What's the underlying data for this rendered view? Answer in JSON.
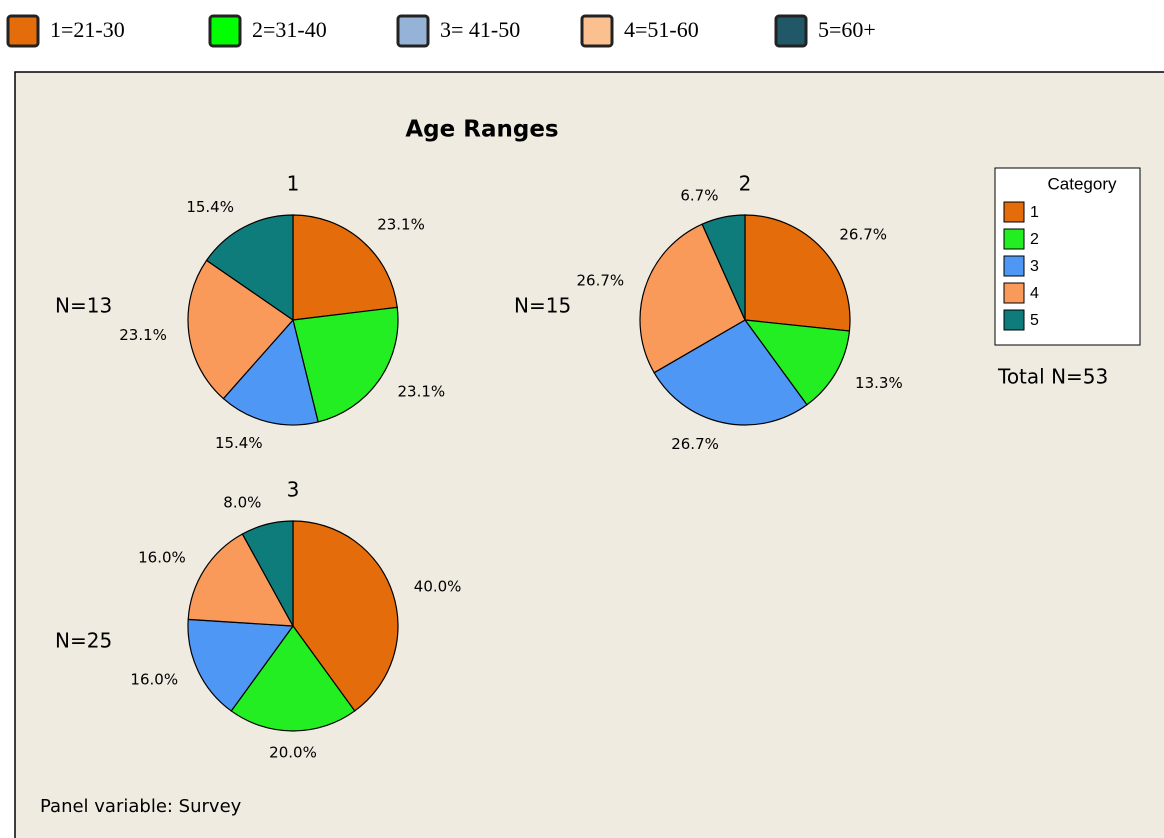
{
  "top_legend": [
    {
      "label": "1=21-30",
      "color": "#e46c0a"
    },
    {
      "label": "2=31-40",
      "color": "#00ff00"
    },
    {
      "label": "3= 41-50",
      "color": "#95b3d7"
    },
    {
      "label": "4=51-60",
      "color": "#fac090"
    },
    {
      "label": "5=60+",
      "color": "#215868"
    }
  ],
  "chart_data": {
    "type": "pie",
    "title": "Age Ranges",
    "legend_title": "Category",
    "categories": [
      "1",
      "2",
      "3",
      "4",
      "5"
    ],
    "colors": [
      "#e46c0a",
      "#22ee22",
      "#4f97f5",
      "#fa9a5a",
      "#0f7c7c"
    ],
    "panels": [
      {
        "name": "1",
        "n_label": "N=13",
        "values": [
          23.1,
          23.1,
          15.4,
          23.1,
          15.4
        ],
        "value_labels": [
          "23.1%",
          "23.1%",
          "15.4%",
          "23.1%",
          "15.4%"
        ]
      },
      {
        "name": "2",
        "n_label": "N=15",
        "values": [
          26.7,
          13.3,
          26.7,
          26.7,
          6.7
        ],
        "value_labels": [
          "26.7%",
          "13.3%",
          "26.7%",
          "26.7%",
          "6.7%"
        ]
      },
      {
        "name": "3",
        "n_label": "N=25",
        "values": [
          40.0,
          20.0,
          16.0,
          16.0,
          8.0
        ],
        "value_labels": [
          "40.0%",
          "20.0%",
          "16.0%",
          "16.0%",
          "8.0%"
        ]
      }
    ],
    "total_label": "Total N=53",
    "footnote": "Panel variable: Survey"
  }
}
